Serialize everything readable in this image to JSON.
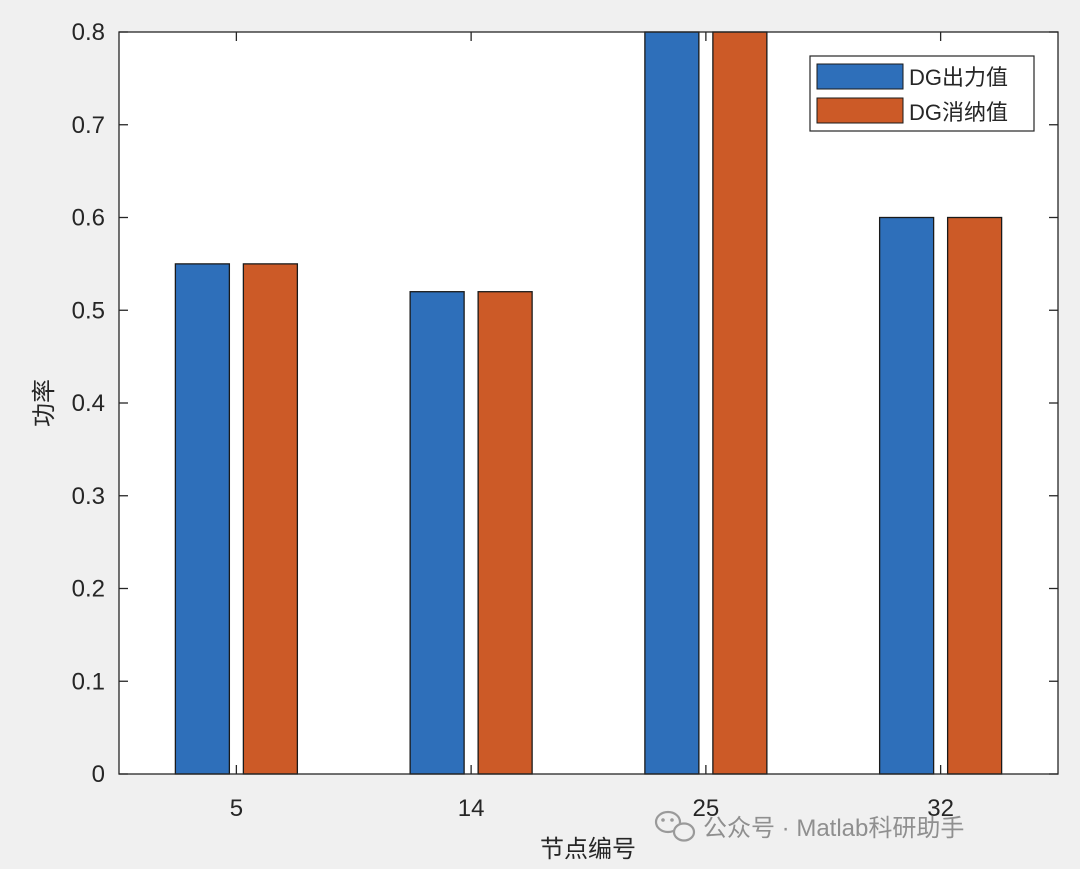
{
  "chart_data": {
    "type": "bar",
    "categories": [
      "5",
      "14",
      "25",
      "32"
    ],
    "series": [
      {
        "name": "DG出力值",
        "values": [
          0.55,
          0.52,
          0.8,
          0.6
        ],
        "color": "#2e6fba"
      },
      {
        "name": "DG消纳值",
        "values": [
          0.55,
          0.52,
          0.8,
          0.6
        ],
        "color": "#cc5a27"
      }
    ],
    "xlabel": "节点编号",
    "ylabel": "功率",
    "ylim": [
      0,
      0.8
    ],
    "yticks": [
      "0",
      "0.1",
      "0.2",
      "0.3",
      "0.4",
      "0.5",
      "0.6",
      "0.7",
      "0.8"
    ],
    "grid": false,
    "legend_position": "top-right"
  },
  "watermark": {
    "text": "公众号 · Matlab科研助手",
    "icon": "wechat-icon"
  },
  "colors": {
    "figure_background": "#f0f0f0",
    "axes_background": "#ffffff",
    "axis_color": "#262626",
    "watermark_color": "#8f8f8f"
  }
}
